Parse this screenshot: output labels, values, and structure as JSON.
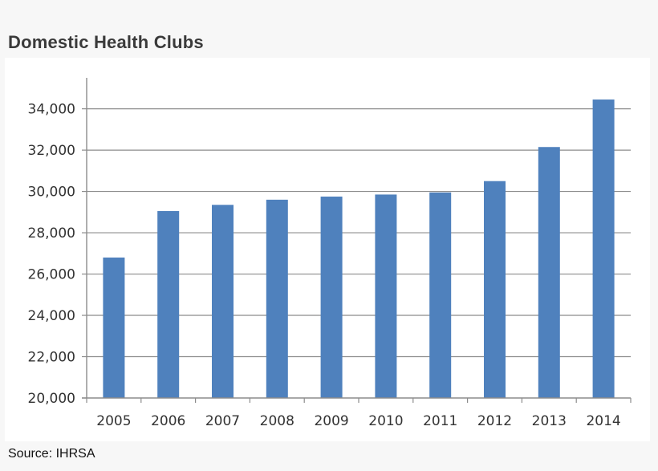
{
  "title": "Domestic Health Clubs",
  "source": "Source: IHRSA",
  "chart_data": {
    "type": "bar",
    "title": "Domestic Health Clubs",
    "xlabel": "",
    "ylabel": "",
    "categories": [
      "2005",
      "2006",
      "2007",
      "2008",
      "2009",
      "2010",
      "2011",
      "2012",
      "2013",
      "2014"
    ],
    "values": [
      26800,
      29050,
      29350,
      29600,
      29750,
      29850,
      29950,
      30500,
      32150,
      34450
    ],
    "ylim": [
      20000,
      35500
    ],
    "yticks": [
      20000,
      22000,
      24000,
      26000,
      28000,
      30000,
      32000,
      34000
    ],
    "ytick_labels": [
      "20,000",
      "22,000",
      "24,000",
      "26,000",
      "28,000",
      "30,000",
      "32,000",
      "34,000"
    ],
    "grid": true,
    "bar_color": "#4f81bd",
    "grid_color": "#8c8c8c"
  }
}
